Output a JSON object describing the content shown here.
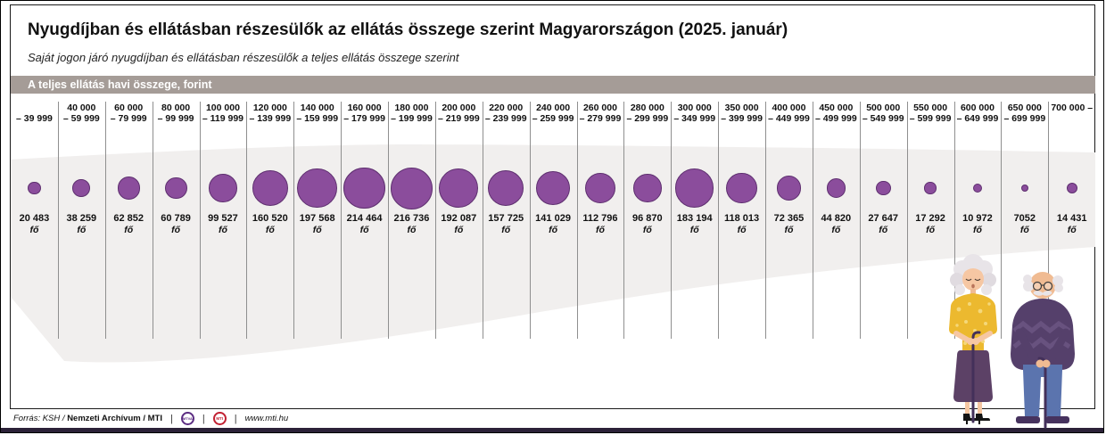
{
  "title": "Nyugdíjban és ellátásban részesülők az ellátás összege szerint Magyarországon (2025. január)",
  "subtitle": "Saját jogon járó nyugdíjban és ellátásban részesülők a teljes ellátás összege szerint",
  "band_label": "A teljes ellátás havi összege, forint",
  "chart_data": {
    "type": "bubble",
    "title": "Nyugdíjban és ellátásban részesülők az ellátás összege szerint Magyarországon (2025. január)",
    "xlabel": "A teljes ellátás havi összege, forint",
    "unit": "fő",
    "size_encoding": "bubble area proportional to value",
    "categories": [
      "– 39 999",
      "40 000 – 59 999",
      "60 000 – 79 999",
      "80 000 – 99 999",
      "100 000 – 119 999",
      "120 000 – 139 999",
      "140 000 – 159 999",
      "160 000 – 179 999",
      "180 000 – 199 999",
      "200 000 – 219 999",
      "220 000 – 239 999",
      "240 000 – 259 999",
      "260 000 – 279 999",
      "280 000 – 299 999",
      "300 000 – 349 999",
      "350 000 – 399 999",
      "400 000 – 449 999",
      "450 000 – 499 999",
      "500 000 – 549 999",
      "550 000 – 599 999",
      "600 000 – 649 999",
      "650 000 – 699 999",
      "700 000 –"
    ],
    "category_lines": [
      [
        "",
        "– 39 999"
      ],
      [
        "40 000",
        "– 59 999"
      ],
      [
        "60 000",
        "– 79 999"
      ],
      [
        "80 000",
        "– 99 999"
      ],
      [
        "100 000",
        "– 119 999"
      ],
      [
        "120 000",
        "– 139 999"
      ],
      [
        "140 000",
        "– 159 999"
      ],
      [
        "160 000",
        "– 179 999"
      ],
      [
        "180 000",
        "– 199 999"
      ],
      [
        "200 000",
        "– 219 999"
      ],
      [
        "220 000",
        "– 239 999"
      ],
      [
        "240 000",
        "– 259 999"
      ],
      [
        "260 000",
        "– 279 999"
      ],
      [
        "280 000",
        "– 299 999"
      ],
      [
        "300 000",
        "– 349 999"
      ],
      [
        "350 000",
        "– 399 999"
      ],
      [
        "400 000",
        "– 449 999"
      ],
      [
        "450 000",
        "– 499 999"
      ],
      [
        "500 000",
        "– 549 999"
      ],
      [
        "550 000",
        "– 599 999"
      ],
      [
        "600 000",
        "– 649 999"
      ],
      [
        "650 000",
        "– 699 999"
      ],
      [
        "700 000 –",
        ""
      ]
    ],
    "values": [
      20483,
      38259,
      62852,
      60789,
      99527,
      160520,
      197568,
      214464,
      216736,
      192087,
      157725,
      141029,
      112796,
      96870,
      183194,
      118013,
      72365,
      44820,
      27647,
      17292,
      10972,
      7052,
      14431
    ],
    "value_labels": [
      "20 483",
      "38 259",
      "62 852",
      "60 789",
      "99 527",
      "160 520",
      "197 568",
      "214 464",
      "216 736",
      "192 087",
      "157 725",
      "141 029",
      "112 796",
      "96 870",
      "183 194",
      "118 013",
      "72 365",
      "44 820",
      "27 647",
      "17 292",
      "10 972",
      "7052",
      "14 431"
    ]
  },
  "footer": {
    "source_prefix": "Forrás: KSH /",
    "source_bold": "Nemzeti Archívum / MTI",
    "logo1": "MTVA",
    "logo2": "MTI",
    "url": "www.mti.hu"
  },
  "colors": {
    "bubble_fill": "#8b4d9c",
    "bubble_stroke": "#5e2f6f",
    "band_background": "#a59c97",
    "ribbon": "#f1efee",
    "bottom_bar": "#2b2138"
  }
}
